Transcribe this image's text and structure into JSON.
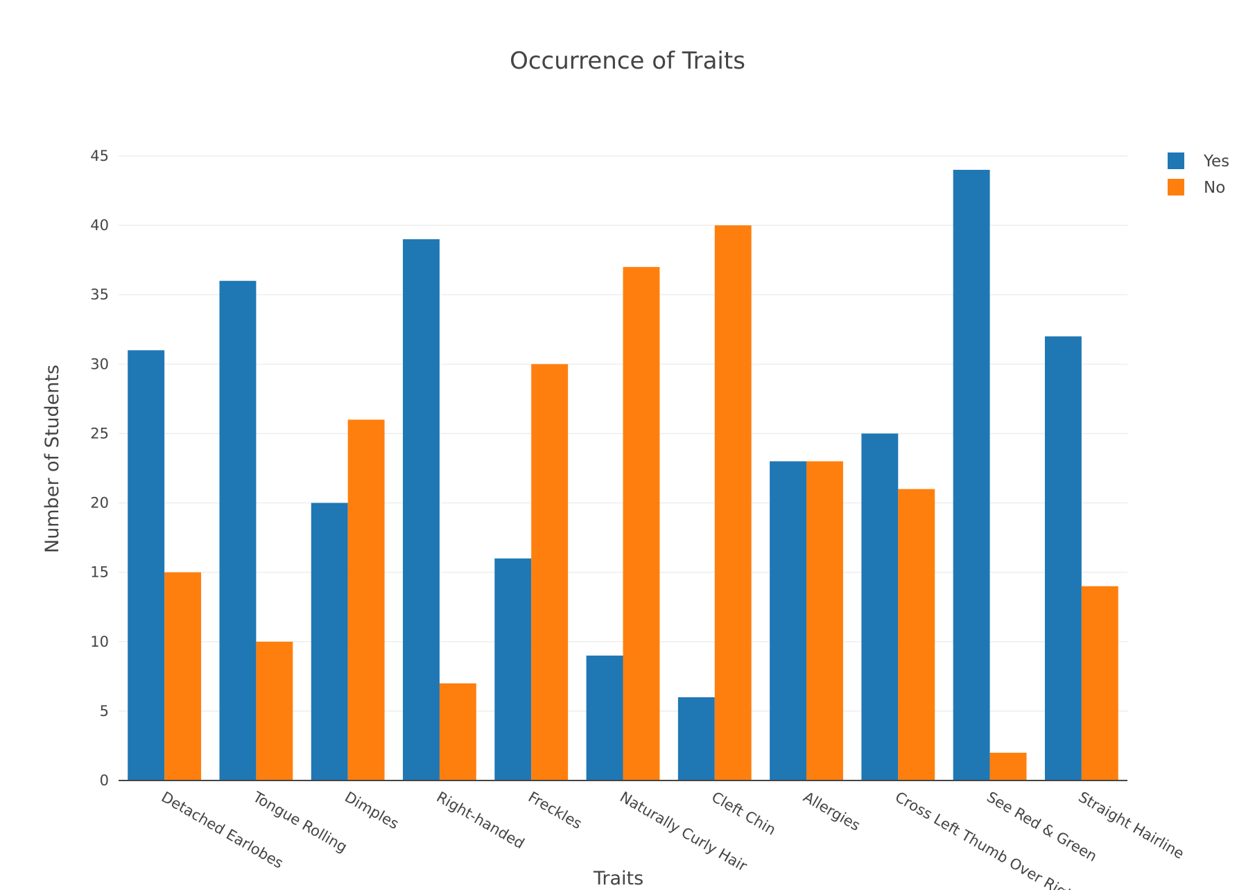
{
  "chart_data": {
    "type": "bar",
    "title": "Occurrence of Traits",
    "xlabel": "Traits",
    "ylabel": "Number of Students",
    "categories": [
      "Detached Earlobes",
      "Tongue Rolling",
      "Dimples",
      "Right-handed",
      "Freckles",
      "Naturally Curly Hair",
      "Cleft Chin",
      "Allergies",
      "Cross Left Thumb Over Right",
      "See Red & Green",
      "Straight Hairline"
    ],
    "series": [
      {
        "name": "Yes",
        "color": "#1f77b4",
        "values": [
          31,
          36,
          20,
          39,
          16,
          9,
          6,
          23,
          25,
          44,
          32
        ]
      },
      {
        "name": "No",
        "color": "#ff7f0e",
        "values": [
          15,
          10,
          26,
          7,
          30,
          37,
          40,
          23,
          21,
          2,
          14
        ]
      }
    ],
    "ylim": [
      0,
      45
    ],
    "yticks": [
      0,
      5,
      10,
      15,
      20,
      25,
      30,
      35,
      40,
      45
    ],
    "grid": true,
    "legend_position": "top-right"
  }
}
